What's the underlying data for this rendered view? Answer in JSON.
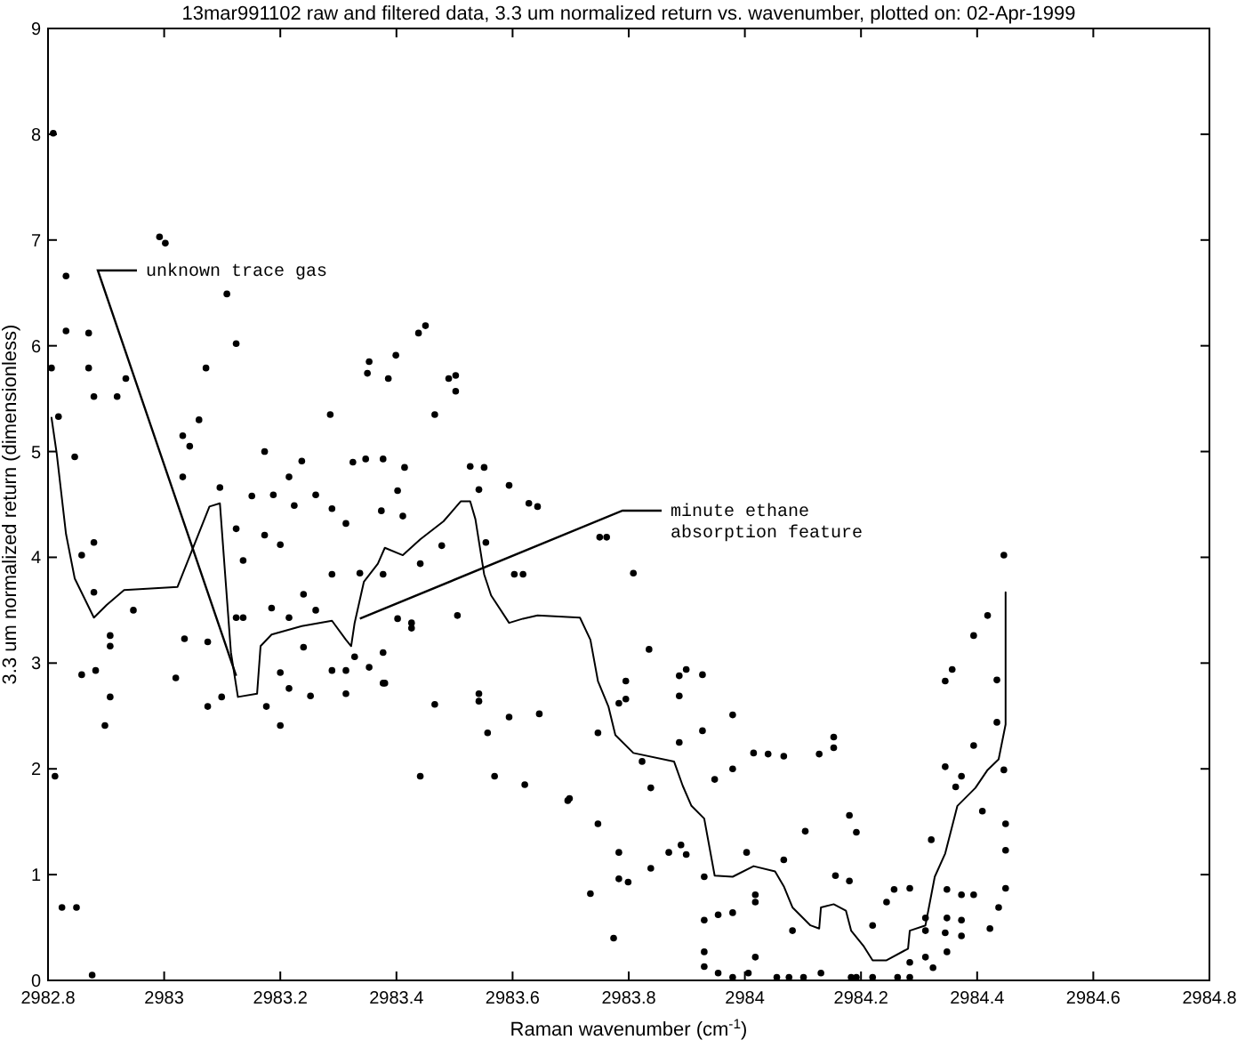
{
  "chart_data": {
    "type": "scatter",
    "title": "13mar991102 raw and filtered data, 3.3 um normalized return vs. wavenumber, plotted on: 02-Apr-1999",
    "xlabel": "Raman wavenumber (cm$^{-1}$)",
    "ylabel": "3.3 um normalized return (dimensionless)",
    "xlim": [
      2982.8,
      2984.8
    ],
    "xticks": [
      2982.8,
      2983,
      2983.2,
      2983.4,
      2983.6,
      2983.8,
      2984,
      2984.2,
      2984.4,
      2984.6,
      2984.8
    ],
    "ylim": [
      0,
      9
    ],
    "yticks": [
      0,
      1,
      2,
      3,
      4,
      5,
      6,
      7,
      8,
      9
    ],
    "grid": false,
    "annotations": [
      {
        "text": "unknown trace gas",
        "x": 2983.124,
        "y": 2.88
      },
      {
        "text": "minute ethane\nabsorption feature",
        "x": 2983.337,
        "y": 3.42
      }
    ],
    "series": [
      {
        "type": "scatter",
        "color": "#000000",
        "marker": "circle",
        "x": [
          2982.809,
          2982.831,
          2982.831,
          2982.87,
          2982.806,
          2982.87,
          2982.879,
          2982.919,
          2982.934,
          2983.108,
          2983.124,
          2983.072,
          2982.992,
          2983.002,
          2982.818,
          2982.846,
          2983.032,
          2983.044,
          2983.06,
          2983.032,
          2983.096,
          2982.879,
          2982.858,
          2982.879,
          2982.947,
          2982.907,
          2982.907,
          2982.858,
          2982.882,
          2982.907,
          2982.898,
          2983.02,
          2983.035,
          2983.075,
          2983.075,
          2983.099,
          2983.124,
          2983.136,
          2983.136,
          2983.124,
          2983.173,
          2983.2,
          2983.185,
          2983.215,
          2983.24,
          2983.261,
          2983.24,
          2983.2,
          2983.215,
          2983.176,
          2983.2,
          2983.252,
          2983.289,
          2983.313,
          2983.313,
          2983.328,
          2983.353,
          2983.377,
          2983.38,
          2983.466,
          2983.151,
          2983.188,
          2983.215,
          2983.224,
          2983.261,
          2983.289,
          2983.313,
          2983.325,
          2983.347,
          2983.377,
          2983.402,
          2983.414,
          2983.286,
          2983.237,
          2983.173,
          2983.353,
          2983.35,
          2983.386,
          2983.399,
          2983.438,
          2983.45,
          2983.466,
          2983.49,
          2983.502,
          2983.502,
          2983.411,
          2983.441,
          2983.478,
          2983.289,
          2983.337,
          2983.377,
          2983.402,
          2983.426,
          2983.426,
          2983.377,
          2983.527,
          2983.551,
          2983.542,
          2983.594,
          2983.628,
          2983.643,
          2983.374,
          2983.554,
          2983.603,
          2983.618,
          2983.75,
          2983.762,
          2983.808,
          2983.505,
          2983.542,
          2983.542,
          2983.594,
          2983.646,
          2983.557,
          2983.441,
          2983.569,
          2983.621,
          2983.695,
          2983.835,
          2983.887,
          2983.899,
          2983.927,
          2983.887,
          2983.795,
          2983.795,
          2983.747,
          2983.823,
          2983.887,
          2983.927,
          2983.979,
          2983.948,
          2983.979,
          2983.838,
          2983.698,
          2983.783,
          2983.747,
          2983.783,
          2983.783,
          2983.799,
          2983.734,
          2983.774,
          2983.869,
          2983.89,
          2983.899,
          2983.838,
          2984.015,
          2984.04,
          2984.067,
          2984.128,
          2984.153,
          2984.153,
          2984.104,
          2984.18,
          2984.192,
          2984.156,
          2984.18,
          2984.067,
          2984.003,
          2984.018,
          2984.018,
          2983.93,
          2983.93,
          2983.954,
          2983.979,
          2984.082,
          2983.93,
          2983.93,
          2983.954,
          2983.979,
          2984.006,
          2984.018,
          2984.22,
          2984.244,
          2984.257,
          2984.284,
          2984.321,
          2984.348,
          2984.373,
          2984.348,
          2984.373,
          2984.311,
          2984.311,
          2984.311,
          2984.284,
          2984.348,
          2984.373,
          2984.345,
          2984.357,
          2984.363,
          2984.394,
          2984.394,
          2984.394,
          2984.446,
          2984.418,
          2984.434,
          2984.434,
          2984.345,
          2984.373,
          2984.446,
          2984.409,
          2984.449,
          2984.449,
          2984.449,
          2984.437,
          2984.422,
          2984.345,
          2984.324,
          2984.131,
          2984.055,
          2984.076,
          2984.101,
          2984.183,
          2984.192,
          2984.22,
          2984.263,
          2984.284,
          2982.812,
          2982.824,
          2982.849,
          2982.876
        ],
        "values": [
          8.01,
          6.66,
          6.14,
          6.12,
          5.79,
          5.79,
          5.52,
          5.52,
          5.69,
          6.49,
          6.02,
          5.79,
          7.03,
          6.97,
          5.33,
          4.95,
          5.15,
          5.05,
          5.3,
          4.76,
          4.66,
          4.14,
          4.02,
          3.67,
          3.5,
          3.26,
          3.16,
          2.89,
          2.93,
          2.68,
          2.41,
          2.86,
          3.23,
          3.2,
          2.59,
          2.68,
          3.43,
          3.43,
          3.97,
          4.27,
          4.21,
          4.12,
          3.52,
          3.43,
          3.65,
          3.5,
          3.15,
          2.91,
          2.76,
          2.59,
          2.41,
          2.69,
          2.93,
          2.93,
          2.71,
          3.06,
          2.96,
          3.1,
          2.81,
          2.61,
          4.58,
          4.59,
          4.76,
          4.49,
          4.59,
          4.46,
          4.32,
          4.9,
          4.93,
          4.93,
          4.63,
          4.85,
          5.35,
          4.91,
          5.0,
          5.85,
          5.74,
          5.69,
          5.91,
          6.12,
          6.19,
          5.35,
          5.69,
          5.72,
          5.57,
          4.39,
          3.94,
          4.11,
          3.84,
          3.85,
          3.84,
          3.42,
          3.38,
          3.33,
          2.81,
          4.86,
          4.85,
          4.64,
          4.68,
          4.51,
          4.48,
          4.44,
          4.14,
          3.84,
          3.84,
          4.19,
          4.19,
          3.85,
          3.45,
          2.71,
          2.64,
          2.49,
          2.52,
          2.34,
          1.93,
          1.93,
          1.85,
          1.7,
          3.13,
          2.88,
          2.94,
          2.89,
          2.69,
          2.83,
          2.66,
          2.34,
          2.07,
          2.25,
          2.36,
          2.51,
          1.9,
          2.0,
          1.82,
          1.72,
          2.62,
          1.48,
          1.21,
          0.96,
          0.93,
          0.82,
          0.4,
          1.21,
          1.28,
          1.19,
          1.06,
          2.15,
          2.14,
          2.12,
          2.14,
          2.3,
          2.2,
          1.41,
          1.56,
          1.4,
          0.99,
          0.94,
          1.14,
          1.21,
          0.81,
          0.74,
          0.98,
          0.57,
          0.62,
          0.64,
          0.47,
          0.27,
          0.13,
          0.07,
          0.03,
          0.07,
          0.22,
          0.52,
          0.74,
          0.86,
          0.87,
          1.33,
          0.86,
          0.81,
          0.59,
          0.57,
          0.59,
          0.47,
          0.22,
          0.17,
          0.27,
          0.42,
          2.83,
          2.94,
          1.83,
          3.26,
          2.22,
          0.81,
          4.02,
          3.45,
          2.84,
          2.44,
          2.02,
          1.93,
          1.99,
          1.6,
          1.48,
          1.23,
          0.87,
          0.69,
          0.49,
          0.45,
          0.12,
          0.07,
          0.03,
          0.03,
          0.03,
          0.03,
          0.03,
          0.03,
          0.03,
          0.03,
          1.93,
          0.69,
          0.69,
          0.05
        ]
      },
      {
        "type": "line",
        "color": "#000000",
        "marker": "none",
        "line_style": "solid",
        "x": [
          2982.806,
          2982.815,
          2982.831,
          2982.846,
          2982.879,
          2982.901,
          2982.931,
          2983.023,
          2983.078,
          2983.096,
          2983.105,
          2983.115,
          2983.127,
          2983.16,
          2983.166,
          2983.185,
          2983.237,
          2983.289,
          2983.313,
          2983.322,
          2983.328,
          2983.344,
          2983.368,
          2983.38,
          2983.411,
          2983.441,
          2983.481,
          2983.511,
          2983.527,
          2983.536,
          2983.551,
          2983.563,
          2983.594,
          2983.618,
          2983.643,
          2983.716,
          2983.734,
          2983.747,
          2983.765,
          2983.777,
          2983.808,
          2983.878,
          2983.893,
          2983.908,
          2983.93,
          2983.948,
          2983.979,
          2984.015,
          2984.052,
          2984.067,
          2984.082,
          2984.113,
          2984.128,
          2984.131,
          2984.153,
          2984.174,
          2984.183,
          2984.205,
          2984.22,
          2984.244,
          2984.281,
          2984.284,
          2984.311,
          2984.327,
          2984.345,
          2984.366,
          2984.397,
          2984.418,
          2984.437,
          2984.449,
          2984.449
        ],
        "values": [
          5.32,
          4.98,
          4.22,
          3.8,
          3.43,
          3.55,
          3.69,
          3.72,
          4.48,
          4.51,
          3.84,
          3.1,
          2.68,
          2.71,
          3.16,
          3.27,
          3.35,
          3.4,
          3.22,
          3.16,
          3.38,
          3.77,
          3.94,
          4.09,
          4.02,
          4.17,
          4.34,
          4.53,
          4.53,
          4.36,
          3.84,
          3.64,
          3.38,
          3.42,
          3.45,
          3.43,
          3.22,
          2.83,
          2.59,
          2.32,
          2.15,
          2.07,
          1.84,
          1.65,
          1.53,
          0.99,
          0.98,
          1.08,
          1.03,
          0.89,
          0.69,
          0.52,
          0.49,
          0.69,
          0.72,
          0.66,
          0.47,
          0.32,
          0.19,
          0.19,
          0.3,
          0.47,
          0.52,
          0.98,
          1.2,
          1.65,
          1.82,
          1.99,
          2.09,
          2.42,
          3.67
        ]
      }
    ]
  }
}
